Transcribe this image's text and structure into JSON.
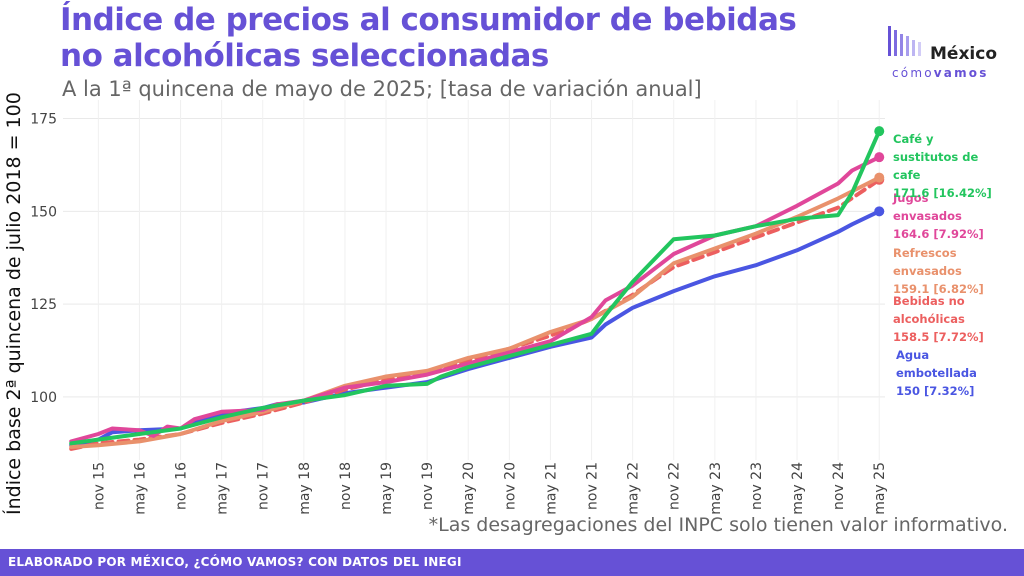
{
  "header": {
    "title": "Índice de precios al consumidor de bebidas no alcohólicas seleccionadas",
    "subtitle": "A la 1ª quincena de mayo de 2025; [tasa de variación anual]"
  },
  "logo": {
    "name": "México",
    "tagline_light": "cómo",
    "tagline_bold": "vamos",
    "color": "#6651d6"
  },
  "note": "*Las desagregaciones del INPC solo tienen valor informativo.",
  "footer": {
    "text": "ELABORADO POR MÉXICO, ¿CÓMO VAMOS? CON DATOS DEL INEGI",
    "color": "#6651d6"
  },
  "chart_data": {
    "type": "line",
    "ylabel": "Índice base 2ª quincena de julio 2018 = 100",
    "xlabel": "",
    "ylim": [
      83,
      180
    ],
    "yticks": [
      100,
      125,
      150,
      175
    ],
    "xticks": [
      {
        "label": "nov 15",
        "x": 2015.83
      },
      {
        "label": "may 16",
        "x": 2016.33
      },
      {
        "label": "nov 16",
        "x": 2016.83
      },
      {
        "label": "may 17",
        "x": 2017.33
      },
      {
        "label": "nov 17",
        "x": 2017.83
      },
      {
        "label": "may 18",
        "x": 2018.33
      },
      {
        "label": "nov 18",
        "x": 2018.83
      },
      {
        "label": "may 19",
        "x": 2019.33
      },
      {
        "label": "nov 19",
        "x": 2019.83
      },
      {
        "label": "may 20",
        "x": 2020.33
      },
      {
        "label": "nov 20",
        "x": 2020.83
      },
      {
        "label": "may 21",
        "x": 2021.33
      },
      {
        "label": "nov 21",
        "x": 2021.83
      },
      {
        "label": "may 22",
        "x": 2022.33
      },
      {
        "label": "nov 22",
        "x": 2022.83
      },
      {
        "label": "may 23",
        "x": 2023.33
      },
      {
        "label": "nov 23",
        "x": 2023.83
      },
      {
        "label": "may 24",
        "x": 2024.33
      },
      {
        "label": "nov 24",
        "x": 2024.83
      },
      {
        "label": "may 25",
        "x": 2025.33
      }
    ],
    "xlim": [
      2015.4,
      2025.4
    ],
    "grid": true,
    "legend": "end-of-line labels",
    "series": [
      {
        "name": "Agua embotellada",
        "label_lines": [
          "Agua",
          "embotellada"
        ],
        "value_label": "150 [7.32%]",
        "color": "#4a56e2",
        "dashed": false,
        "points": [
          [
            2015.5,
            87.0
          ],
          [
            2015.83,
            88.5
          ],
          [
            2016.0,
            90.5
          ],
          [
            2016.33,
            91.0
          ],
          [
            2016.83,
            91.5
          ],
          [
            2017.0,
            93.0
          ],
          [
            2017.33,
            95.5
          ],
          [
            2017.83,
            97.0
          ],
          [
            2018.0,
            98.0
          ],
          [
            2018.33,
            98.5
          ],
          [
            2018.83,
            101.0
          ],
          [
            2019.33,
            102.5
          ],
          [
            2019.83,
            104.0
          ],
          [
            2020.33,
            107.5
          ],
          [
            2020.83,
            110.5
          ],
          [
            2021.33,
            113.5
          ],
          [
            2021.83,
            116.0
          ],
          [
            2022.0,
            119.5
          ],
          [
            2022.33,
            124.0
          ],
          [
            2022.83,
            128.5
          ],
          [
            2023.33,
            132.5
          ],
          [
            2023.83,
            135.5
          ],
          [
            2024.33,
            139.5
          ],
          [
            2024.83,
            144.5
          ],
          [
            2025.0,
            146.5
          ],
          [
            2025.33,
            150.0
          ]
        ]
      },
      {
        "name": "Bebidas no alcohólicas",
        "label_lines": [
          "Bebidas no",
          "alcohólicas"
        ],
        "value_label": "158.5 [7.72%]",
        "color": "#ec5f5f",
        "dashed": true,
        "points": [
          [
            2015.5,
            86.0
          ],
          [
            2015.83,
            87.5
          ],
          [
            2016.33,
            88.5
          ],
          [
            2016.83,
            90.0
          ],
          [
            2017.33,
            93.0
          ],
          [
            2017.83,
            95.5
          ],
          [
            2018.33,
            98.5
          ],
          [
            2018.83,
            102.0
          ],
          [
            2019.33,
            104.5
          ],
          [
            2019.83,
            106.5
          ],
          [
            2020.33,
            110.0
          ],
          [
            2020.83,
            113.0
          ],
          [
            2021.33,
            116.5
          ],
          [
            2021.83,
            121.0
          ],
          [
            2022.33,
            127.5
          ],
          [
            2022.83,
            135.0
          ],
          [
            2023.33,
            139.0
          ],
          [
            2023.83,
            143.0
          ],
          [
            2024.33,
            147.0
          ],
          [
            2024.83,
            151.0
          ],
          [
            2025.33,
            158.5
          ]
        ]
      },
      {
        "name": "Refrescos envasados",
        "label_lines": [
          "Refrescos",
          "envasados"
        ],
        "value_label": "159.1 [6.82%]",
        "color": "#e9916c",
        "dashed": false,
        "points": [
          [
            2015.5,
            86.5
          ],
          [
            2015.83,
            87.0
          ],
          [
            2016.33,
            88.0
          ],
          [
            2016.83,
            90.0
          ],
          [
            2017.33,
            93.5
          ],
          [
            2017.83,
            96.0
          ],
          [
            2018.33,
            99.0
          ],
          [
            2018.83,
            103.0
          ],
          [
            2019.33,
            105.5
          ],
          [
            2019.83,
            107.0
          ],
          [
            2020.33,
            110.5
          ],
          [
            2020.83,
            113.0
          ],
          [
            2021.33,
            117.5
          ],
          [
            2021.83,
            121.0
          ],
          [
            2022.33,
            127.0
          ],
          [
            2022.83,
            136.0
          ],
          [
            2023.33,
            140.0
          ],
          [
            2023.83,
            144.0
          ],
          [
            2024.33,
            148.5
          ],
          [
            2024.83,
            153.5
          ],
          [
            2025.33,
            159.1
          ]
        ]
      },
      {
        "name": "Jugos envasados",
        "label_lines": [
          "Jugos",
          "envasados"
        ],
        "value_label": "164.6 [7.92%]",
        "color": "#e0479a",
        "dashed": false,
        "points": [
          [
            2015.5,
            88.0
          ],
          [
            2015.83,
            90.0
          ],
          [
            2016.0,
            91.5
          ],
          [
            2016.33,
            91.0
          ],
          [
            2016.5,
            89.5
          ],
          [
            2016.67,
            92.0
          ],
          [
            2016.83,
            91.5
          ],
          [
            2017.0,
            94.0
          ],
          [
            2017.33,
            96.0
          ],
          [
            2017.83,
            96.5
          ],
          [
            2018.0,
            98.0
          ],
          [
            2018.33,
            99.0
          ],
          [
            2018.83,
            102.5
          ],
          [
            2019.33,
            104.0
          ],
          [
            2019.83,
            106.0
          ],
          [
            2020.33,
            109.0
          ],
          [
            2020.83,
            112.0
          ],
          [
            2021.33,
            115.0
          ],
          [
            2021.83,
            121.5
          ],
          [
            2022.0,
            126.0
          ],
          [
            2022.33,
            130.0
          ],
          [
            2022.83,
            138.5
          ],
          [
            2023.33,
            143.5
          ],
          [
            2023.83,
            146.0
          ],
          [
            2024.33,
            151.5
          ],
          [
            2024.83,
            157.5
          ],
          [
            2025.0,
            161.0
          ],
          [
            2025.33,
            164.6
          ]
        ]
      },
      {
        "name": "Café y sustitutos de cafe",
        "label_lines": [
          "Café y",
          "sustitutos de",
          "cafe"
        ],
        "value_label": "171.6 [16.42%]",
        "color": "#22c55e",
        "dashed": false,
        "points": [
          [
            2015.5,
            87.5
          ],
          [
            2015.83,
            88.5
          ],
          [
            2016.33,
            90.0
          ],
          [
            2016.83,
            91.5
          ],
          [
            2017.33,
            94.5
          ],
          [
            2017.83,
            97.0
          ],
          [
            2018.33,
            99.0
          ],
          [
            2018.83,
            100.5
          ],
          [
            2019.33,
            103.0
          ],
          [
            2019.83,
            103.5
          ],
          [
            2020.0,
            105.5
          ],
          [
            2020.33,
            108.0
          ],
          [
            2020.83,
            111.0
          ],
          [
            2021.33,
            114.0
          ],
          [
            2021.83,
            117.0
          ],
          [
            2022.0,
            122.0
          ],
          [
            2022.33,
            131.0
          ],
          [
            2022.83,
            142.5
          ],
          [
            2023.33,
            143.5
          ],
          [
            2023.83,
            146.0
          ],
          [
            2024.33,
            148.0
          ],
          [
            2024.83,
            149.0
          ],
          [
            2025.0,
            155.0
          ],
          [
            2025.33,
            171.6
          ]
        ]
      }
    ]
  }
}
